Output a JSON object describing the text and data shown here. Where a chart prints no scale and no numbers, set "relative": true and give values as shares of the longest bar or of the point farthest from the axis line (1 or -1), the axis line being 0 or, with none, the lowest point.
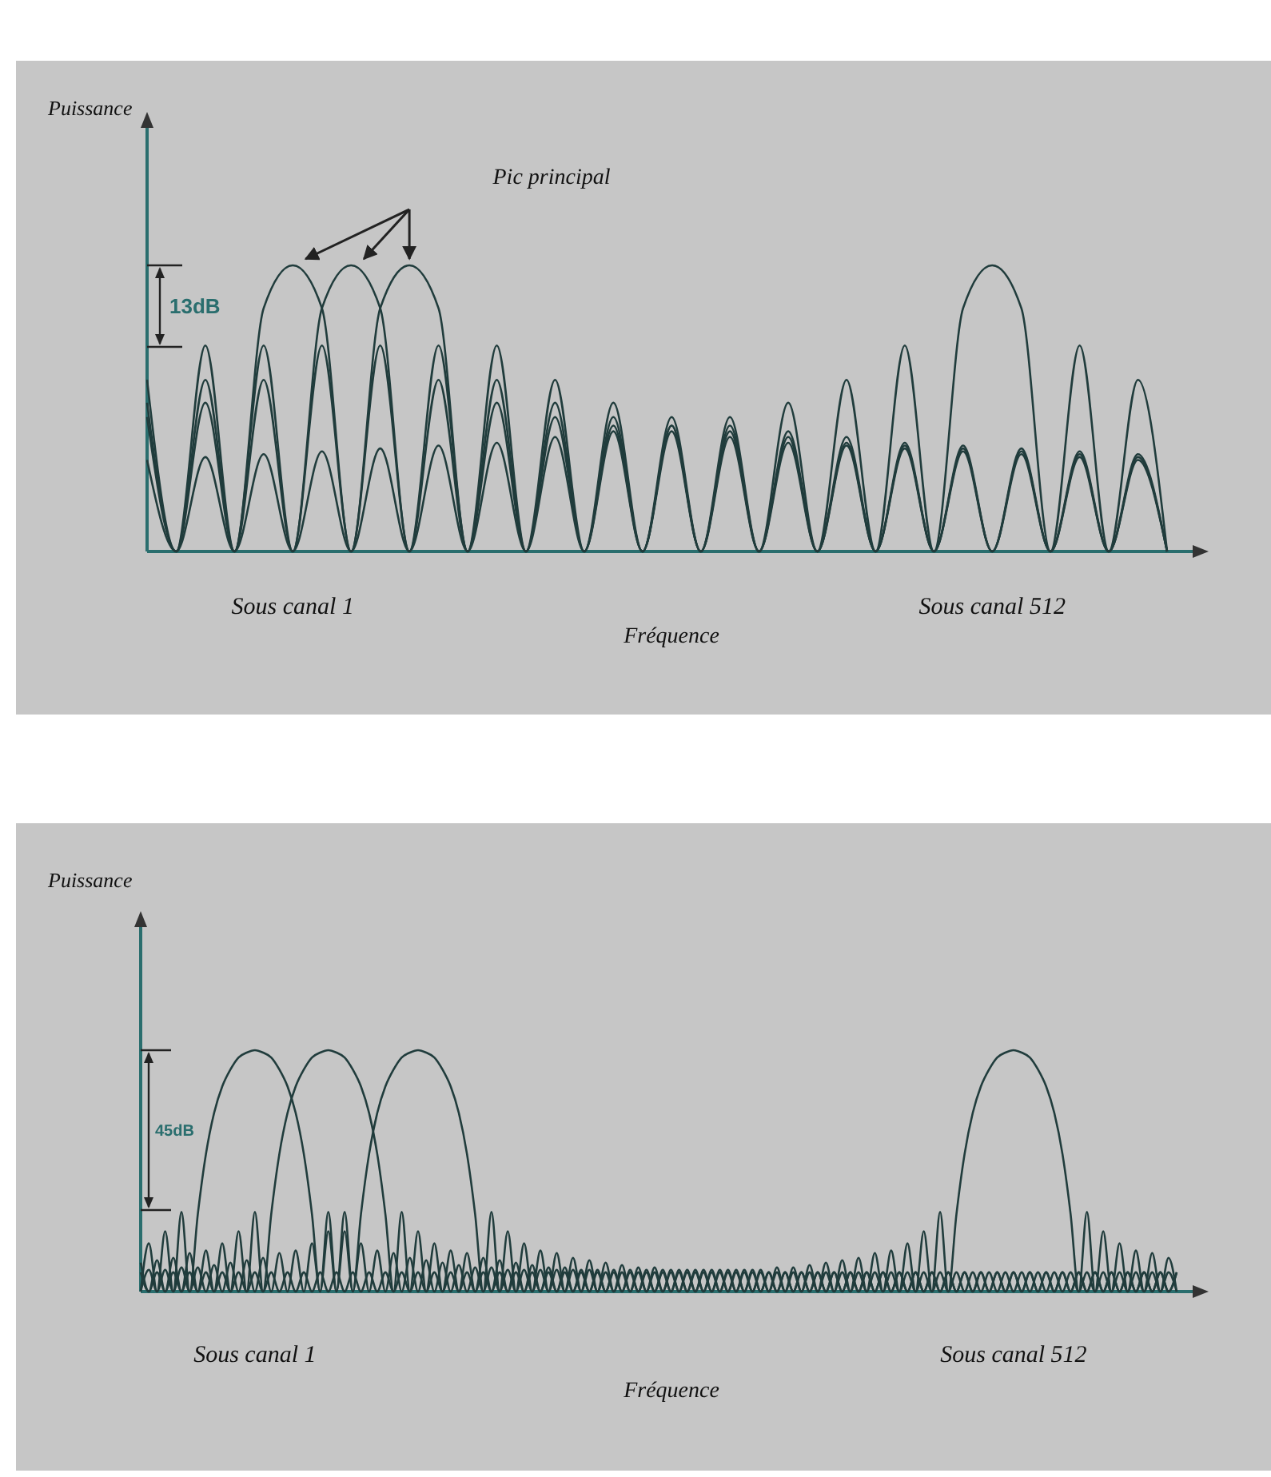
{
  "chart_data": [
    {
      "type": "line",
      "relative": true,
      "xlabel": "Fréquence",
      "ylabel": "Puissance",
      "annotations": [
        "Pic principal",
        "13dB"
      ],
      "categories": [
        null,
        null,
        null,
        null,
        null,
        null,
        null,
        null,
        null,
        null,
        null,
        null,
        null,
        null,
        null,
        null,
        null,
        null,
        null,
        null,
        null,
        null,
        null,
        null,
        null,
        null,
        null,
        null,
        null,
        null,
        null,
        null,
        null,
        null,
        null,
        null
      ],
      "series": [
        {
          "name": "Sous canal 1",
          "color": "#203c3c",
          "values": [
            0.6,
            0,
            0.72,
            0,
            0.85,
            1,
            0.85,
            0,
            0.72,
            0,
            0.6,
            0,
            0.52,
            0,
            0.47,
            0,
            0.44,
            0,
            0.42,
            0,
            0.4,
            0,
            0.38,
            0,
            0.37,
            0,
            0.36,
            0,
            0.35,
            0,
            0.34,
            0,
            0.33,
            0,
            0.32,
            0
          ]
        },
        {
          "color": "#203c3c",
          "values": [
            0.52,
            0,
            0.6,
            0,
            0.72,
            0,
            0.85,
            1,
            0.85,
            0,
            0.72,
            0,
            0.6,
            0,
            0.52,
            0,
            0.47,
            0,
            0.44,
            0,
            0.42,
            0,
            0.4,
            0,
            0.38,
            0,
            0.37,
            0,
            0.36,
            0,
            0.35,
            0,
            0.34,
            0,
            0.33,
            0
          ]
        },
        {
          "color": "#203c3c",
          "values": [
            0.47,
            0,
            0.52,
            0,
            0.6,
            0,
            0.72,
            0,
            0.85,
            1,
            0.85,
            0,
            0.72,
            0,
            0.6,
            0,
            0.52,
            0,
            0.47,
            0,
            0.44,
            0,
            0.42,
            0,
            0.4,
            0,
            0.38,
            0,
            0.37,
            0,
            0.36,
            0,
            0.35,
            0,
            0.34,
            0
          ]
        },
        {
          "name": "Sous canal 512",
          "color": "#203c3c",
          "values": [
            0.32,
            0,
            0.33,
            0,
            0.34,
            0,
            0.35,
            0,
            0.36,
            0,
            0.37,
            0,
            0.38,
            0,
            0.4,
            0,
            0.42,
            0,
            0.44,
            0,
            0.47,
            0,
            0.52,
            0,
            0.6,
            0,
            0.72,
            0,
            0.85,
            1,
            0.85,
            0,
            0.72,
            0,
            0.6,
            0
          ]
        }
      ]
    },
    {
      "type": "line",
      "relative": true,
      "xlabel": "Fréquence",
      "ylabel": "Puissance",
      "annotations": [
        "45dB"
      ],
      "categories": [
        null,
        null,
        null,
        null,
        null,
        null,
        null,
        null,
        null,
        null,
        null,
        null,
        null,
        null,
        null,
        null,
        null,
        null,
        null,
        null,
        null,
        null,
        null,
        null,
        null,
        null,
        null,
        null,
        null,
        null,
        null,
        null,
        null,
        null,
        null,
        null,
        null,
        null,
        null,
        null,
        null,
        null,
        null,
        null,
        null,
        null,
        null,
        null,
        null,
        null,
        null,
        null,
        null,
        null,
        null,
        null,
        null,
        null,
        null,
        null,
        null,
        null,
        null,
        null,
        null,
        null,
        null,
        null,
        null,
        null,
        null,
        null,
        null,
        null,
        null,
        null,
        null,
        null,
        null,
        null,
        null,
        null,
        null,
        null,
        null,
        null,
        null,
        null,
        null,
        null,
        null,
        null,
        null,
        null,
        null,
        null,
        null,
        null,
        null,
        null,
        null,
        null,
        null,
        null,
        null,
        null,
        null,
        null,
        null,
        null,
        null,
        null,
        null,
        null,
        null,
        null,
        null,
        null,
        null,
        null,
        null,
        null,
        null,
        null,
        null,
        null,
        null,
        null
      ],
      "series": [
        {
          "name": "Sous canal 1",
          "color": "#203c3c",
          "values": [
            0,
            0.2,
            0,
            0.25,
            0,
            0.33,
            0,
            0.32,
            0.57,
            0.74,
            0.85,
            0.92,
            0.97,
            0.99,
            1,
            0.99,
            0.97,
            0.92,
            0.85,
            0.74,
            0.57,
            0.32,
            0,
            0.33,
            0,
            0.25,
            0,
            0.2,
            0,
            0.17,
            0,
            0.16,
            0,
            0.14,
            0,
            0.13,
            0,
            0.12,
            0,
            0.11,
            0,
            0.1,
            0,
            0.1,
            0,
            0.09,
            0,
            0.09,
            0,
            0.09,
            0,
            0.09,
            0,
            0.09,
            0,
            0.09,
            0,
            0.08,
            0,
            0.08,
            0,
            0.08,
            0,
            0.08,
            0,
            0.08,
            0,
            0.08,
            0,
            0.08,
            0,
            0.08,
            0,
            0.08,
            0,
            0.08,
            0,
            0.08,
            0,
            0.08,
            0,
            0.08,
            0,
            0.08,
            0,
            0.08,
            0,
            0.08,
            0,
            0.08,
            0,
            0.08,
            0,
            0.08,
            0,
            0.08,
            0,
            0.08,
            0,
            0.08,
            0,
            0.08,
            0,
            0.08,
            0,
            0.08,
            0,
            0.08,
            0,
            0.08,
            0,
            0.08,
            0,
            0.08,
            0,
            0.08,
            0,
            0.08,
            0,
            0.08,
            0,
            0.08,
            0,
            0.08,
            0,
            0.08,
            0,
            0.08
          ]
        },
        {
          "color": "#203c3c",
          "values": [
            0.12,
            0,
            0.13,
            0,
            0.14,
            0,
            0.16,
            0,
            0.17,
            0,
            0.2,
            0,
            0.25,
            0,
            0.33,
            0,
            0.32,
            0.57,
            0.74,
            0.85,
            0.92,
            0.97,
            0.99,
            1,
            0.99,
            0.97,
            0.92,
            0.85,
            0.74,
            0.57,
            0.32,
            0,
            0.33,
            0,
            0.25,
            0,
            0.2,
            0,
            0.17,
            0,
            0.16,
            0,
            0.14,
            0,
            0.13,
            0,
            0.12,
            0,
            0.11,
            0,
            0.1,
            0,
            0.1,
            0,
            0.09,
            0,
            0.09,
            0,
            0.09,
            0,
            0.09,
            0,
            0.09,
            0,
            0.09,
            0,
            0.08,
            0,
            0.08,
            0,
            0.08,
            0,
            0.08,
            0,
            0.08,
            0,
            0.08,
            0,
            0.08,
            0,
            0.08,
            0,
            0.08,
            0,
            0.08,
            0,
            0.08,
            0,
            0.08,
            0,
            0.08,
            0,
            0.08,
            0,
            0.08,
            0,
            0.08,
            0,
            0.08,
            0,
            0.08,
            0,
            0.08,
            0,
            0.08,
            0,
            0.08,
            0,
            0.08,
            0,
            0.08,
            0,
            0.08,
            0,
            0.08,
            0,
            0.08,
            0,
            0.08,
            0,
            0.08,
            0,
            0.08,
            0,
            0.08,
            0,
            0.08,
            0
          ]
        },
        {
          "color": "#203c3c",
          "values": [
            0,
            0.09,
            0,
            0.09,
            0,
            0.1,
            0,
            0.1,
            0,
            0.11,
            0,
            0.12,
            0,
            0.13,
            0,
            0.14,
            0,
            0.16,
            0,
            0.17,
            0,
            0.2,
            0,
            0.25,
            0,
            0.33,
            0,
            0.32,
            0.57,
            0.74,
            0.85,
            0.92,
            0.97,
            0.99,
            1,
            0.99,
            0.97,
            0.92,
            0.85,
            0.74,
            0.57,
            0.32,
            0,
            0.33,
            0,
            0.25,
            0,
            0.2,
            0,
            0.17,
            0,
            0.16,
            0,
            0.14,
            0,
            0.13,
            0,
            0.12,
            0,
            0.11,
            0,
            0.1,
            0,
            0.1,
            0,
            0.09,
            0,
            0.09,
            0,
            0.09,
            0,
            0.09,
            0,
            0.09,
            0,
            0.09,
            0,
            0.08,
            0,
            0.08,
            0,
            0.08,
            0,
            0.08,
            0,
            0.08,
            0,
            0.08,
            0,
            0.08,
            0,
            0.08,
            0,
            0.08,
            0,
            0.08,
            0,
            0.08,
            0,
            0.08,
            0,
            0.08,
            0,
            0.08,
            0,
            0.08,
            0,
            0.08,
            0,
            0.08,
            0,
            0.08,
            0,
            0.08,
            0,
            0.08,
            0,
            0.08,
            0,
            0.08,
            0,
            0.08,
            0,
            0.08,
            0,
            0.08,
            0,
            0.08
          ]
        },
        {
          "name": "Sous canal 512",
          "color": "#203c3c",
          "values": [
            0.08,
            0,
            0.08,
            0,
            0.08,
            0,
            0.08,
            0,
            0.08,
            0,
            0.08,
            0,
            0.08,
            0,
            0.08,
            0,
            0.08,
            0,
            0.08,
            0,
            0.08,
            0,
            0.08,
            0,
            0.08,
            0,
            0.08,
            0,
            0.08,
            0,
            0.08,
            0,
            0.08,
            0,
            0.08,
            0,
            0.08,
            0,
            0.08,
            0,
            0.08,
            0,
            0.08,
            0,
            0.08,
            0,
            0.08,
            0,
            0.08,
            0,
            0.08,
            0,
            0.08,
            0,
            0.08,
            0,
            0.08,
            0,
            0.08,
            0,
            0.08,
            0,
            0.08,
            0,
            0.08,
            0,
            0.09,
            0,
            0.09,
            0,
            0.09,
            0,
            0.09,
            0,
            0.09,
            0,
            0.09,
            0,
            0.1,
            0,
            0.1,
            0,
            0.11,
            0,
            0.12,
            0,
            0.13,
            0,
            0.14,
            0,
            0.16,
            0,
            0.17,
            0,
            0.2,
            0,
            0.25,
            0,
            0.33,
            0,
            0.32,
            0.57,
            0.74,
            0.85,
            0.92,
            0.97,
            0.99,
            1,
            0.99,
            0.97,
            0.92,
            0.85,
            0.74,
            0.57,
            0.32,
            0,
            0.33,
            0,
            0.25,
            0,
            0.2,
            0,
            0.17,
            0,
            0.16,
            0,
            0.14,
            0
          ]
        }
      ]
    }
  ]
}
